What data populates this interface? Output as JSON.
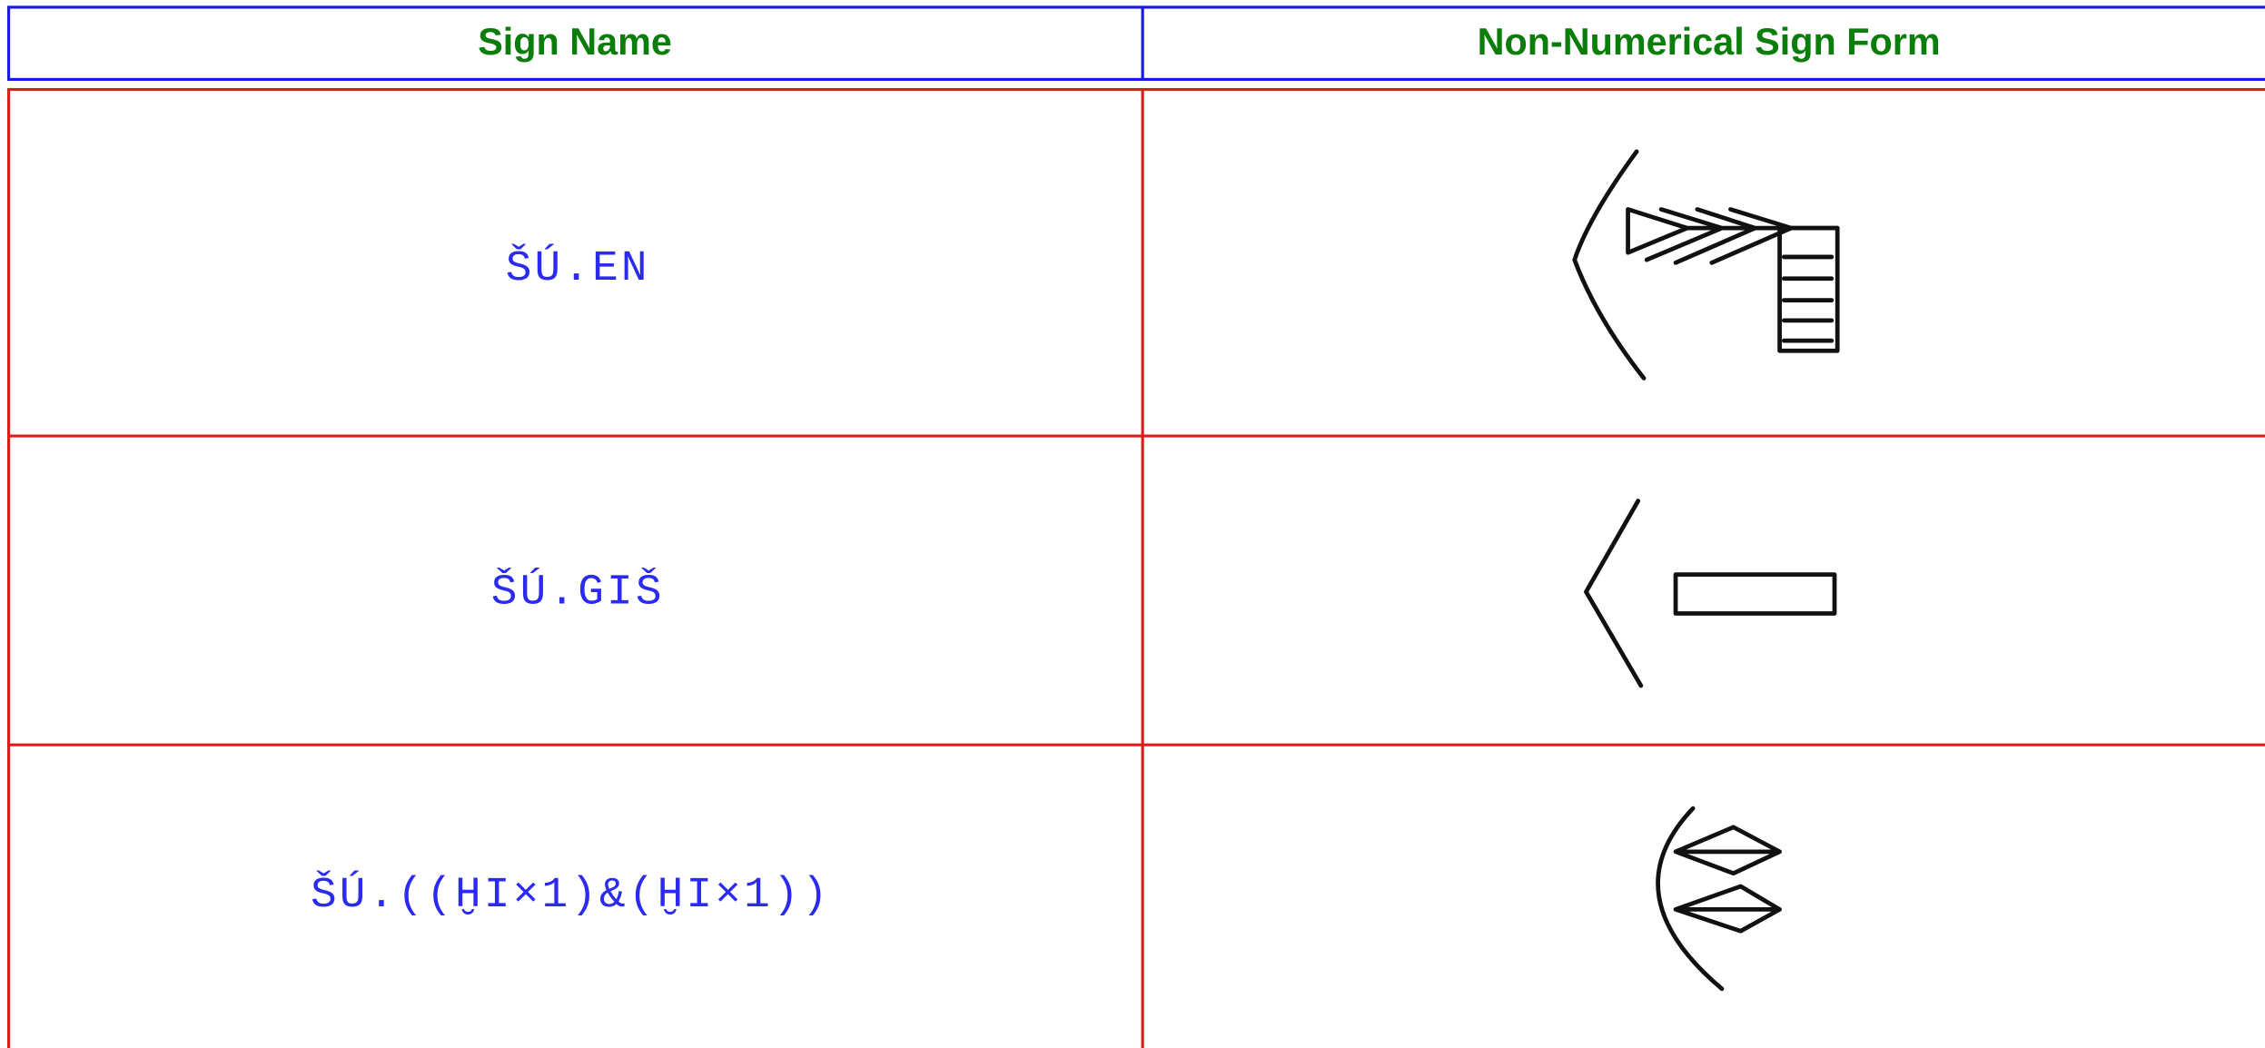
{
  "header": {
    "columns": [
      "Sign Name",
      "Non-Numerical Sign Form"
    ]
  },
  "rows": [
    {
      "name": "ŠÚ.EN"
    },
    {
      "name": "ŠÚ.GIŠ"
    },
    {
      "name": "ŠÚ.((ḪI×1)&(ḪI×1))"
    }
  ]
}
